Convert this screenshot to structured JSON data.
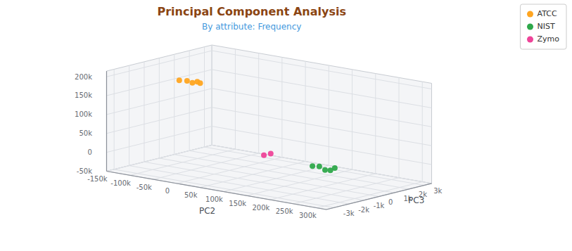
{
  "chart_data": {
    "type": "scatter",
    "title": "Principal Component Analysis",
    "subtitle": "By attribute: Frequency",
    "title_color": "#8B4513",
    "subtitle_color": "#4499DD",
    "x_label": "PC2",
    "y_label": "PC3",
    "series": [
      {
        "name": "ATCC",
        "color": "#FFA520",
        "x": [
          -75000,
          -68000,
          -63000,
          -59000,
          -56000
        ],
        "y": [
          -1000,
          -700,
          -500,
          -300,
          -200
        ],
        "z": [
          182000,
          179000,
          173000,
          175000,
          171000
        ]
      },
      {
        "name": "NIST",
        "color": "#2EA84A",
        "x": [
          255000,
          260000,
          298000,
          303000,
          306000
        ],
        "y": [
          -2400,
          -2100,
          -2900,
          -2700,
          -2500
        ],
        "z": [
          40000,
          37000,
          44000,
          42000,
          47000
        ]
      },
      {
        "name": "Zymo",
        "color": "#EE4499",
        "x": [
          77000,
          82000
        ],
        "y": [
          -100,
          200
        ],
        "z": [
          8000,
          10000
        ]
      }
    ],
    "xlim": [
      -150000,
      320000
    ],
    "ylim": [
      -3500,
      3500
    ],
    "zlim": [
      -50000,
      215000
    ],
    "xticks": [
      {
        "value": -150000,
        "label": "-150k"
      },
      {
        "value": -100000,
        "label": "-100k"
      },
      {
        "value": -50000,
        "label": "-50k"
      },
      0,
      {
        "value": 50000,
        "label": "50k"
      },
      {
        "value": 100000,
        "label": "100k"
      },
      {
        "value": 150000,
        "label": "150k"
      },
      {
        "value": 200000,
        "label": "200k"
      },
      {
        "value": 250000,
        "label": "250k"
      },
      {
        "value": 300000,
        "label": "300k"
      }
    ],
    "yticks": [
      {
        "value": -3000,
        "label": "-3k"
      },
      {
        "value": -2000,
        "label": "-2k"
      },
      {
        "value": -1000,
        "label": "-1k"
      },
      0,
      {
        "value": 1000,
        "label": "1k"
      },
      {
        "value": 2000,
        "label": "2k"
      },
      {
        "value": 3000,
        "label": "3k"
      }
    ],
    "zticks": [
      {
        "value": -50000,
        "label": "-50k"
      },
      0,
      {
        "value": 50000,
        "label": "50k"
      },
      {
        "value": 100000,
        "label": "100k"
      },
      {
        "value": 150000,
        "label": "150k"
      },
      {
        "value": 200000,
        "label": "200k"
      }
    ],
    "grid": true,
    "legend": "upper right"
  }
}
